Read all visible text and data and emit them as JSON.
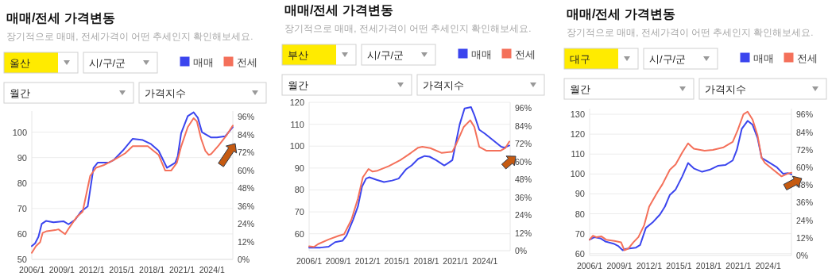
{
  "chart_data": [
    {
      "type": "line",
      "title": "매매/전세 가격변동",
      "subtitle": "장기적으로 매매, 전세가격이 어떤 추세인지 확인해보세요.",
      "annotations": [
        "울산",
        "시/구/군",
        "월간",
        "가격지수"
      ],
      "series": [
        {
          "name": "매매",
          "color": "#3b45ee",
          "x": [
            "2006-01",
            "2006-05",
            "2006-09",
            "2007-01",
            "2007-06",
            "2008-03",
            "2009-03",
            "2009-09",
            "2010-05",
            "2010-12",
            "2011-08",
            "2012-03",
            "2012-08",
            "2013-09",
            "2014-03",
            "2015-02",
            "2016-02",
            "2017-02",
            "2017-12",
            "2018-09",
            "2019-07",
            "2020-05",
            "2020-08",
            "2020-12",
            "2021-08",
            "2022-03",
            "2022-08",
            "2023-01",
            "2023-12",
            "2024-07",
            "2025-05",
            "2026-02"
          ],
          "values": [
            55.2,
            56.3,
            58.9,
            64,
            65.1,
            64.6,
            65,
            63.8,
            65.6,
            68.8,
            70.8,
            86,
            88,
            88,
            89,
            92.7,
            97.4,
            96.9,
            95.3,
            92.7,
            86,
            88,
            90.6,
            99.5,
            106.3,
            107.8,
            105.7,
            100,
            97.9,
            97.9,
            98.4,
            102
          ]
        },
        {
          "name": "전세",
          "color": "#f4705a",
          "x": [
            "2006-01",
            "2006-06",
            "2006-11",
            "2007-02",
            "2007-07",
            "2008-05",
            "2008-09",
            "2009-05",
            "2009-09",
            "2010-07",
            "2011-02",
            "2011-11",
            "2012-06",
            "2013-03",
            "2014-03",
            "2015-05",
            "2016-02",
            "2017-08",
            "2018-09",
            "2019-05",
            "2019-12",
            "2020-07",
            "2020-12",
            "2021-08",
            "2022-03",
            "2022-07",
            "2022-12",
            "2023-05",
            "2023-09",
            "2023-12",
            "2024-09",
            "2025-07",
            "2026-02"
          ],
          "values": [
            52.6,
            55.2,
            56.8,
            60.4,
            61.1,
            61.5,
            61.8,
            59.9,
            62,
            66.7,
            68.8,
            82.8,
            86,
            87,
            89,
            91.7,
            94.5,
            94.5,
            91.1,
            84.9,
            84.9,
            88,
            94.3,
            102,
            105.5,
            104.2,
            97.4,
            92.7,
            91.1,
            91.4,
            94.8,
            99,
            102.6
          ]
        }
      ],
      "xlim": [
        "2006-01",
        "2026-02"
      ],
      "xticks": [
        {
          "value": "2006-01",
          "label": "2006/1"
        },
        {
          "value": "2009-01",
          "label": "2009/1"
        },
        {
          "value": "2012-01",
          "label": "2012/1"
        },
        {
          "value": "2015-01",
          "label": "2015/1"
        },
        {
          "value": "2018-01",
          "label": "2018/1"
        },
        {
          "value": "2021-01",
          "label": "2021/1"
        },
        {
          "value": "2024-01",
          "label": "2024/1"
        }
      ],
      "ylim": [
        50,
        108.3
      ],
      "yticks": [
        50,
        60,
        70,
        80,
        90,
        100
      ],
      "y2lim": [
        0,
        100
      ],
      "y2ticks": [
        {
          "value": 0,
          "label": "0%"
        },
        {
          "value": 12,
          "label": "12%"
        },
        {
          "value": 24,
          "label": "24%"
        },
        {
          "value": 36,
          "label": "36%"
        },
        {
          "value": 48,
          "label": "48%"
        },
        {
          "value": 60,
          "label": "60%"
        },
        {
          "value": 72,
          "label": "72%"
        },
        {
          "value": 84,
          "label": "84%"
        },
        {
          "value": 96,
          "label": "96%"
        }
      ],
      "grid": "y",
      "legend": "top right"
    },
    {
      "type": "line",
      "title": "매매/전세 가격변동",
      "subtitle": "장기적으로 매매, 전세가격이 어떤 추세인지 확인해보세요.",
      "annotations": [
        "부산",
        "시/구/군",
        "월간",
        "가격지수"
      ],
      "series": [
        {
          "name": "매매",
          "color": "#3b45ee",
          "x": [
            "2006-01",
            "2007-03",
            "2008-01",
            "2008-09",
            "2009-06",
            "2009-11",
            "2010-07",
            "2011-01",
            "2011-06",
            "2011-11",
            "2012-03",
            "2012-12",
            "2013-09",
            "2014-07",
            "2015-03",
            "2015-12",
            "2016-07",
            "2017-03",
            "2017-11",
            "2018-05",
            "2019-01",
            "2019-11",
            "2020-03",
            "2020-09",
            "2020-12",
            "2021-06",
            "2021-12",
            "2022-08",
            "2022-12",
            "2023-06",
            "2024-01",
            "2024-11",
            "2025-09",
            "2026-01",
            "2026-07"
          ],
          "values": [
            53.7,
            53.7,
            54.1,
            56.2,
            56.8,
            59.2,
            66.4,
            72.5,
            81.5,
            85.2,
            85.8,
            84.6,
            83.6,
            84.3,
            85.2,
            89.4,
            91.2,
            94.2,
            95.5,
            95.2,
            93.6,
            91.2,
            92.1,
            93.6,
            99.1,
            109.9,
            117.2,
            117.8,
            114.2,
            107.5,
            105.7,
            102.7,
            99.7,
            99.3,
            100.3
          ]
        },
        {
          "name": "전세",
          "color": "#f4705a",
          "x": [
            "2006-01",
            "2006-07",
            "2006-12",
            "2008-01",
            "2009-02",
            "2009-08",
            "2010-05",
            "2011-01",
            "2011-07",
            "2012-02",
            "2012-07",
            "2013-01",
            "2014-03",
            "2015-05",
            "2016-06",
            "2017-03",
            "2017-08",
            "2018-06",
            "2019-08",
            "2020-09",
            "2021-01",
            "2021-11",
            "2022-07",
            "2022-12",
            "2023-06",
            "2024-03",
            "2025-08",
            "2026-02",
            "2026-07"
          ],
          "values": [
            54.3,
            54,
            55.3,
            57.4,
            59.2,
            59.8,
            66.4,
            76.1,
            85.8,
            89.6,
            88.4,
            88.8,
            90.9,
            93.6,
            96.9,
            99.3,
            99.7,
            99.1,
            96.9,
            97.5,
            100.3,
            108.8,
            111.8,
            108.8,
            99.7,
            97.9,
            97.9,
            99.1,
            102.1
          ]
        }
      ],
      "xlim": [
        "2006-01",
        "2026-08"
      ],
      "xticks": [
        {
          "value": "2006-01",
          "label": "2006/1"
        },
        {
          "value": "2009-01",
          "label": "2009/1"
        },
        {
          "value": "2012-01",
          "label": "2012/1"
        },
        {
          "value": "2015-01",
          "label": "2015/1"
        },
        {
          "value": "2018-01",
          "label": "2018/1"
        },
        {
          "value": "2021-01",
          "label": "2021/1"
        },
        {
          "value": "2024-01",
          "label": "2024/1"
        }
      ],
      "ylim": [
        52.3,
        120
      ],
      "yticks": [
        60,
        70,
        80,
        90,
        100,
        110,
        120
      ],
      "y2lim": [
        0,
        100
      ],
      "y2ticks": [
        {
          "value": 0,
          "label": "0%"
        },
        {
          "value": 12,
          "label": "12%"
        },
        {
          "value": 24,
          "label": "24%"
        },
        {
          "value": 36,
          "label": "36%"
        },
        {
          "value": 48,
          "label": "48%"
        },
        {
          "value": 60,
          "label": "60%"
        },
        {
          "value": 72,
          "label": "72%"
        },
        {
          "value": 84,
          "label": "84%"
        },
        {
          "value": 96,
          "label": "96%"
        }
      ],
      "grid": "y",
      "legend": "top right"
    },
    {
      "type": "line",
      "title": "매매/전세 가격변동",
      "subtitle": "장기적으로 매매, 전세가격이 어떤 추세인지 확인해보세요.",
      "annotations": [
        "대구",
        "시/구/군",
        "월간",
        "가격지수"
      ],
      "series": [
        {
          "name": "매매",
          "color": "#3b45ee",
          "x": [
            "2006-01",
            "2006-07",
            "2007-02",
            "2007-08",
            "2008-06",
            "2008-12",
            "2009-05",
            "2009-09",
            "2010-09",
            "2011-02",
            "2011-09",
            "2012-05",
            "2013-02",
            "2013-08",
            "2014-02",
            "2014-09",
            "2015-05",
            "2015-12",
            "2016-07",
            "2017-05",
            "2018-02",
            "2018-12",
            "2019-09",
            "2020-06",
            "2020-11",
            "2021-05",
            "2021-12",
            "2022-06",
            "2022-12",
            "2023-05",
            "2024-01",
            "2024-11",
            "2025-07",
            "2026-01",
            "2026-05"
          ],
          "values": [
            67,
            68.3,
            67.7,
            66.1,
            65,
            63.7,
            61.7,
            62.4,
            63,
            64.3,
            72.9,
            75.6,
            79.6,
            83.6,
            89.5,
            92.2,
            98.8,
            105.5,
            102.8,
            101.1,
            102.1,
            104.1,
            104.5,
            106.8,
            112.1,
            122.7,
            126.7,
            124.7,
            118.1,
            108.1,
            106.1,
            103.5,
            100.1,
            100.4,
            99.8
          ]
        },
        {
          "name": "전세",
          "color": "#f4705a",
          "x": [
            "2006-01",
            "2006-05",
            "2006-09",
            "2007-03",
            "2007-09",
            "2008-07",
            "2009-03",
            "2009-07",
            "2009-12",
            "2010-06",
            "2010-12",
            "2011-07",
            "2012-01",
            "2012-11",
            "2013-05",
            "2014-02",
            "2014-09",
            "2015-05",
            "2015-12",
            "2016-07",
            "2017-08",
            "2018-06",
            "2019-07",
            "2020-06",
            "2020-12",
            "2021-07",
            "2021-12",
            "2022-06",
            "2022-12",
            "2023-05",
            "2023-09",
            "2024-07",
            "2025-05",
            "2025-12",
            "2026-05"
          ],
          "values": [
            67,
            69,
            68.3,
            68.7,
            67,
            66.4,
            65.7,
            61.7,
            62.6,
            65.7,
            68.3,
            74.3,
            83.6,
            90.9,
            94.8,
            102.1,
            104.8,
            110.8,
            115.4,
            112.7,
            111.7,
            112.1,
            113.4,
            116.1,
            122,
            130,
            131.3,
            127.3,
            119.4,
            108.1,
            105.5,
            102.1,
            98.8,
            100.1,
            100.6
          ]
        }
      ],
      "xlim": [
        "2006-01",
        "2026-05"
      ],
      "xticks": [
        {
          "value": "2006-01",
          "label": "2006/1"
        },
        {
          "value": "2009-01",
          "label": "2009/1"
        },
        {
          "value": "2012-01",
          "label": "2012/1"
        },
        {
          "value": "2015-01",
          "label": "2015/1"
        },
        {
          "value": "2018-01",
          "label": "2018/1"
        },
        {
          "value": "2021-01",
          "label": "2021/1"
        },
        {
          "value": "2024-01",
          "label": "2024/1"
        }
      ],
      "ylim": [
        59.1,
        132.8
      ],
      "yticks": [
        60,
        70,
        80,
        90,
        100,
        110,
        120,
        130
      ],
      "y2lim": [
        0,
        100
      ],
      "y2ticks": [
        {
          "value": 0,
          "label": "0%"
        },
        {
          "value": 12,
          "label": "12%"
        },
        {
          "value": 24,
          "label": "24%"
        },
        {
          "value": 36,
          "label": "36%"
        },
        {
          "value": 48,
          "label": "48%"
        },
        {
          "value": 60,
          "label": "60%"
        },
        {
          "value": 72,
          "label": "72%"
        },
        {
          "value": 84,
          "label": "84%"
        },
        {
          "value": 96,
          "label": "96%"
        }
      ],
      "grid": "y",
      "legend": "top right"
    }
  ]
}
